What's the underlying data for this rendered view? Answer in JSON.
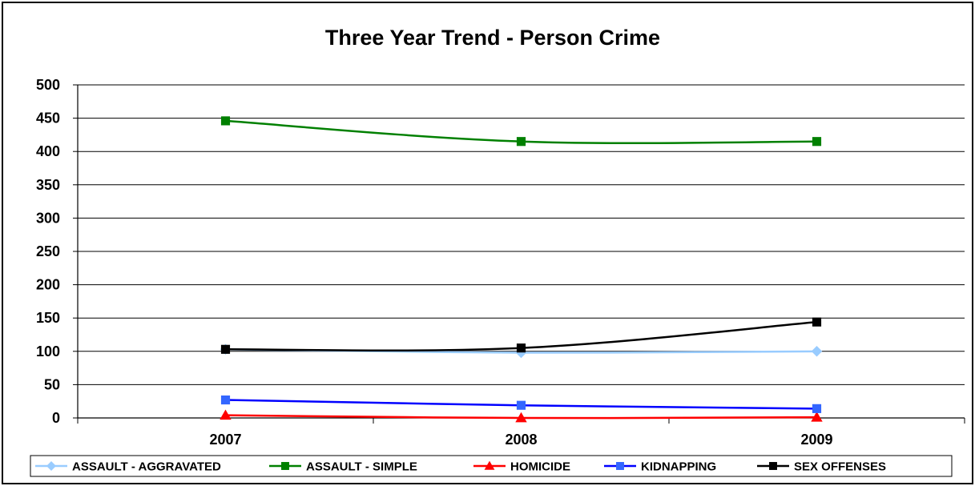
{
  "chart_data": {
    "type": "line",
    "title": "Three Year Trend - Person Crime",
    "xlabel": "",
    "ylabel": "",
    "categories": [
      "2007",
      "2008",
      "2009"
    ],
    "ylim": [
      0,
      500
    ],
    "yticks": [
      "0",
      "50",
      "100",
      "150",
      "200",
      "250",
      "300",
      "350",
      "400",
      "450",
      "500"
    ],
    "grid": true,
    "legend_position": "bottom",
    "series": [
      {
        "name": "ASSAULT - AGGRAVATED",
        "values": [
          103,
          98,
          100
        ],
        "color": "#99CCFF",
        "marker": "diamond"
      },
      {
        "name": "ASSAULT - SIMPLE",
        "values": [
          446,
          415,
          415
        ],
        "color": "#008000",
        "marker": "square"
      },
      {
        "name": "HOMICIDE",
        "values": [
          4,
          0,
          1
        ],
        "color": "#FF0000",
        "marker": "triangle"
      },
      {
        "name": "KIDNAPPING",
        "values": [
          27,
          19,
          14
        ],
        "color": "#0000FF",
        "marker": "square",
        "marker_color": "#3366FF"
      },
      {
        "name": "SEX OFFENSES",
        "values": [
          103,
          105,
          144
        ],
        "color": "#000000",
        "marker": "square"
      }
    ]
  }
}
